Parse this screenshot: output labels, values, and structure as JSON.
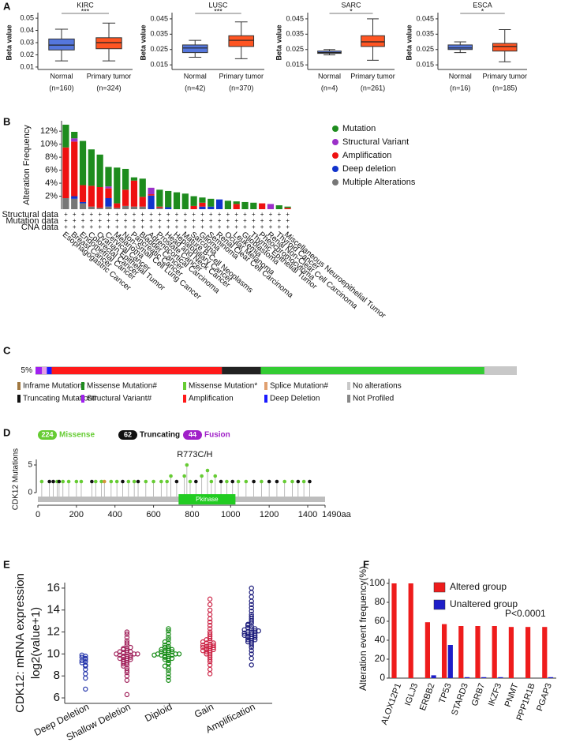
{
  "chart_data": [
    {
      "type": "box",
      "panel": "A",
      "title": "KIRC",
      "ylabel": "Beta value",
      "categories": [
        "Normal",
        "Primary tumor"
      ],
      "n_labels": [
        "(n=160)",
        "(n=324)"
      ],
      "colors": [
        "#5577dd",
        "#ff5522"
      ],
      "significance": "***",
      "boxes": [
        {
          "whisker_low": 0.015,
          "q1": 0.024,
          "median": 0.028,
          "q3": 0.033,
          "whisker_high": 0.041
        },
        {
          "whisker_low": 0.015,
          "q1": 0.025,
          "median": 0.03,
          "q3": 0.034,
          "whisker_high": 0.046
        }
      ],
      "ylim": [
        0.008,
        0.052
      ],
      "yticks": [
        0.01,
        0.02,
        0.03,
        0.04,
        0.05
      ]
    },
    {
      "type": "box",
      "title": "LUSC",
      "ylabel": "Beta value",
      "categories": [
        "Normal",
        "Primary tumor"
      ],
      "n_labels": [
        "(n=42)",
        "(n=370)"
      ],
      "colors": [
        "#5577dd",
        "#ff5522"
      ],
      "significance": "***",
      "boxes": [
        {
          "whisker_low": 0.02,
          "q1": 0.023,
          "median": 0.026,
          "q3": 0.028,
          "whisker_high": 0.031
        },
        {
          "whisker_low": 0.019,
          "q1": 0.027,
          "median": 0.031,
          "q3": 0.034,
          "whisker_high": 0.043
        }
      ],
      "ylim": [
        0.012,
        0.047
      ],
      "yticks": [
        0.015,
        0.025,
        0.035,
        0.045
      ]
    },
    {
      "type": "box",
      "title": "SARC",
      "ylabel": "Beta value",
      "categories": [
        "Normal",
        "Primary tumor"
      ],
      "n_labels": [
        "(n=4)",
        "(n=261)"
      ],
      "colors": [
        "#5577dd",
        "#ff5522"
      ],
      "significance": "*",
      "boxes": [
        {
          "whisker_low": 0.0215,
          "q1": 0.0225,
          "median": 0.023,
          "q3": 0.024,
          "whisker_high": 0.025
        },
        {
          "whisker_low": 0.018,
          "q1": 0.027,
          "median": 0.03,
          "q3": 0.034,
          "whisker_high": 0.045
        }
      ],
      "ylim": [
        0.012,
        0.047
      ],
      "yticks": [
        0.015,
        0.025,
        0.035,
        0.045
      ]
    },
    {
      "type": "box",
      "title": "ESCA",
      "ylabel": "Beta value",
      "categories": [
        "Normal",
        "Primary tumor"
      ],
      "n_labels": [
        "(n=16)",
        "(n=185)"
      ],
      "colors": [
        "#5577dd",
        "#ff5522"
      ],
      "significance": "*",
      "boxes": [
        {
          "whisker_low": 0.023,
          "q1": 0.025,
          "median": 0.026,
          "q3": 0.028,
          "whisker_high": 0.03
        },
        {
          "whisker_low": 0.017,
          "q1": 0.024,
          "median": 0.027,
          "q3": 0.029,
          "whisker_high": 0.038
        }
      ],
      "ylim": [
        0.012,
        0.047
      ],
      "yticks": [
        0.015,
        0.025,
        0.035,
        0.045
      ]
    },
    {
      "type": "bar",
      "panel": "B",
      "stacked": true,
      "legend": "right",
      "ylabel": "Alteration Frequency",
      "categories": [
        "Esophagogastric Cancer",
        "Breast Cancer",
        "Endometrial Cancer",
        "Colorectal Cancer",
        "Ovarian Epithelial Tumor",
        "Cervical Cancer",
        "Melanoma",
        "Non-Small Cell Lung Cancer",
        "Pancreatic Cancer",
        "Bladder Cancer",
        "Adrenocortical Carcinoma",
        "Prostate Cancer",
        "Head and Neck Cancer",
        "Hepatobiliary Cancer",
        "Mature B-Cell Neoplasms",
        "Sarcoma",
        "Glioma",
        "Seminoma",
        "Renal Clear Cell Carcinoma",
        "Ocular Melanoma",
        "Leukemia",
        "Glioblastoma",
        "Thymic Epithelial Tumor",
        "Pheochromocytoma",
        "Renal Non-Clear Cell Carcinoma",
        "Thyroid Cancer",
        "Miscellaneous Neuroepithelial Tumor"
      ],
      "series": [
        {
          "name": "Mutation",
          "color": "#1e8c1e",
          "values": [
            3.5,
            1.0,
            6.8,
            5.6,
            5.0,
            3.0,
            5.5,
            3.2,
            0.5,
            2.8,
            0,
            2.6,
            2.5,
            2.6,
            2.4,
            1.5,
            0.8,
            1.2,
            0,
            1.3,
            0.4,
            1.1,
            1.0,
            0,
            0,
            0.6,
            0.2
          ]
        },
        {
          "name": "Structural Variant",
          "color": "#9b30c8",
          "values": [
            0,
            0.5,
            0,
            0,
            0,
            0.3,
            0,
            0,
            0,
            0,
            1.0,
            0,
            0,
            0,
            0,
            0,
            0,
            0,
            0,
            0,
            0,
            0,
            0,
            0,
            0.8,
            0,
            0
          ]
        },
        {
          "name": "Amplification",
          "color": "#ee1111",
          "values": [
            7.8,
            8.4,
            2.6,
            3.2,
            3.2,
            1.5,
            0.7,
            2.5,
            4.0,
            1.5,
            0.2,
            0.2,
            0,
            0,
            0,
            0.5,
            0.6,
            0,
            0,
            0,
            0.8,
            0,
            0,
            0.9,
            0,
            0,
            0.2
          ]
        },
        {
          "name": "Deep deletion",
          "color": "#1133cc",
          "values": [
            0,
            0.4,
            0.2,
            0,
            0,
            1.3,
            0,
            0,
            0,
            0,
            2.1,
            0,
            0.3,
            0,
            0,
            0,
            0.4,
            0.4,
            1.5,
            0,
            0,
            0,
            0,
            0,
            0,
            0,
            0
          ]
        },
        {
          "name": "Multiple Alterations",
          "color": "#777777",
          "values": [
            1.7,
            1.6,
            0.9,
            0.4,
            0.2,
            0.4,
            0.2,
            0.5,
            0.4,
            0.4,
            0,
            0.2,
            0,
            0,
            0,
            0,
            0,
            0,
            0,
            0,
            0,
            0,
            0,
            0,
            0,
            0,
            0
          ]
        }
      ],
      "profile_rows": [
        "Structural data",
        "Mutation data",
        "CNA data"
      ],
      "profile_marker": "+",
      "ylim": [
        0,
        13.6
      ],
      "yticks": [
        {
          "value": 2,
          "label": "2%"
        },
        {
          "value": 4,
          "label": "4%"
        },
        {
          "value": 6,
          "label": "6%"
        },
        {
          "value": 8,
          "label": "8%"
        },
        {
          "value": 10,
          "label": "10%"
        },
        {
          "value": 12,
          "label": "12%"
        }
      ]
    },
    {
      "type": "oncoprint",
      "panel": "C",
      "frequency_label": "5%",
      "background": "#c8c8c8",
      "segments": [
        {
          "color": "#a020f0",
          "count": 8
        },
        {
          "color": "#e6a0e6",
          "count": 6
        },
        {
          "color": "#1a1aff",
          "count": 6
        },
        {
          "color": "#ff1a1a",
          "count": 210
        },
        {
          "color": "#222222",
          "count": 48
        },
        {
          "color": "#33cc33",
          "count": 276
        },
        {
          "color": "#c8c8c8",
          "count": 40
        }
      ],
      "legend_items": [
        {
          "label": "Inframe Mutation*",
          "color": "#a07840"
        },
        {
          "label": "Missense Mutation#",
          "color": "#1e8c1e"
        },
        {
          "label": "Missense Mutation*",
          "color": "#66cc33"
        },
        {
          "label": "Splice Mutation#",
          "color": "#e0a070"
        },
        {
          "label": "No alterations",
          "color": "#c8c8c8"
        },
        {
          "label": "Truncating Mutation#",
          "color": "#111111"
        },
        {
          "label": "Structural Variant#",
          "color": "#a020f0"
        },
        {
          "label": "Amplification",
          "color": "#ff1a1a"
        },
        {
          "label": "Deep Deletion",
          "color": "#1a1aff"
        },
        {
          "label": "Not Profiled",
          "color": "#888888"
        }
      ]
    },
    {
      "type": "lollipop",
      "panel": "D",
      "ylabel": "CDK12 Mutations",
      "annotation": "R773C/H",
      "counts": [
        {
          "count": 224,
          "label": "Missense",
          "color": "#66cc33"
        },
        {
          "count": 62,
          "label": "Truncating",
          "color": "#111111"
        },
        {
          "count": 44,
          "label": "Fusion",
          "color": "#a020c8"
        }
      ],
      "domain": {
        "name": "Pkinase",
        "start": 730,
        "end": 1025,
        "color": "#22cc22"
      },
      "mutations": [
        {
          "position": 20,
          "count": 2,
          "color": "#66cc33"
        },
        {
          "position": 60,
          "count": 2,
          "color": "#111111"
        },
        {
          "position": 80,
          "count": 2,
          "color": "#111111"
        },
        {
          "position": 100,
          "count": 2,
          "color": "#66cc33"
        },
        {
          "position": 110,
          "count": 2,
          "color": "#111111"
        },
        {
          "position": 130,
          "count": 2,
          "color": "#66cc33"
        },
        {
          "position": 160,
          "count": 2,
          "color": "#66cc33"
        },
        {
          "position": 200,
          "count": 2,
          "color": "#66cc33"
        },
        {
          "position": 225,
          "count": 2,
          "color": "#66cc33"
        },
        {
          "position": 280,
          "count": 2,
          "color": "#111111"
        },
        {
          "position": 300,
          "count": 2,
          "color": "#66cc33"
        },
        {
          "position": 330,
          "count": 2,
          "color": "#66cc33"
        },
        {
          "position": 345,
          "count": 2,
          "color": "#d4943a"
        },
        {
          "position": 380,
          "count": 2,
          "color": "#66cc33"
        },
        {
          "position": 410,
          "count": 2,
          "color": "#66cc33"
        },
        {
          "position": 440,
          "count": 2,
          "color": "#111111"
        },
        {
          "position": 470,
          "count": 2,
          "color": "#66cc33"
        },
        {
          "position": 500,
          "count": 2,
          "color": "#66cc33"
        },
        {
          "position": 520,
          "count": 2,
          "color": "#111111"
        },
        {
          "position": 560,
          "count": 2,
          "color": "#66cc33"
        },
        {
          "position": 600,
          "count": 2,
          "color": "#66cc33"
        },
        {
          "position": 640,
          "count": 2,
          "color": "#66cc33"
        },
        {
          "position": 670,
          "count": 2,
          "color": "#66cc33"
        },
        {
          "position": 690,
          "count": 3,
          "color": "#66cc33"
        },
        {
          "position": 720,
          "count": 2,
          "color": "#111111"
        },
        {
          "position": 760,
          "count": 3,
          "color": "#66cc33"
        },
        {
          "position": 773,
          "count": 5,
          "color": "#66cc33"
        },
        {
          "position": 790,
          "count": 2,
          "color": "#66cc33"
        },
        {
          "position": 820,
          "count": 2,
          "color": "#111111"
        },
        {
          "position": 850,
          "count": 3,
          "color": "#66cc33"
        },
        {
          "position": 880,
          "count": 4,
          "color": "#66cc33"
        },
        {
          "position": 900,
          "count": 2,
          "color": "#66cc33"
        },
        {
          "position": 920,
          "count": 3,
          "color": "#66cc33"
        },
        {
          "position": 950,
          "count": 2,
          "color": "#111111"
        },
        {
          "position": 980,
          "count": 2,
          "color": "#66cc33"
        },
        {
          "position": 1010,
          "count": 2,
          "color": "#111111"
        },
        {
          "position": 1040,
          "count": 2,
          "color": "#66cc33"
        },
        {
          "position": 1080,
          "count": 2,
          "color": "#66cc33"
        },
        {
          "position": 1120,
          "count": 2,
          "color": "#111111"
        },
        {
          "position": 1160,
          "count": 2,
          "color": "#66cc33"
        },
        {
          "position": 1200,
          "count": 2,
          "color": "#111111"
        },
        {
          "position": 1240,
          "count": 2,
          "color": "#111111"
        },
        {
          "position": 1280,
          "count": 2,
          "color": "#66cc33"
        },
        {
          "position": 1320,
          "count": 2,
          "color": "#66cc33"
        },
        {
          "position": 1350,
          "count": 2,
          "color": "#111111"
        },
        {
          "position": 1380,
          "count": 2,
          "color": "#66cc33"
        },
        {
          "position": 1410,
          "count": 2,
          "color": "#111111"
        }
      ],
      "xlim": [
        0,
        1490
      ],
      "xticks": [
        0,
        200,
        400,
        600,
        800,
        1000,
        1200,
        1400,
        {
          "value": 1490,
          "label": "1490aa"
        }
      ],
      "ylim": [
        0,
        6
      ],
      "yticks": [
        0,
        5
      ]
    },
    {
      "type": "swarm",
      "panel": "E",
      "ylabel": [
        "CDK12: mRNA expression",
        "log2(value+1)"
      ],
      "series": [
        {
          "name": "Deep Deletion",
          "color": "#2233aa",
          "values": [
            9.8,
            9.6,
            9.5,
            9.4,
            9.3,
            9.7,
            9.9,
            9.2,
            8.9,
            8.6,
            8.2,
            7.8,
            6.8,
            9.0
          ]
        },
        {
          "name": "Shallow Deletion",
          "color": "#a0205a",
          "values": [
            6.3,
            7.6,
            8.0,
            8.3,
            8.5,
            8.7,
            8.9,
            9.0,
            9.1,
            9.2,
            9.3,
            9.4,
            9.5,
            9.5,
            9.6,
            9.7,
            9.7,
            9.8,
            9.8,
            9.9,
            9.9,
            10.0,
            10.0,
            10.0,
            10.1,
            10.1,
            10.2,
            10.2,
            10.3,
            10.4,
            10.5,
            10.5,
            10.6,
            10.8,
            11.0,
            11.2,
            11.5,
            11.8,
            12.0,
            9.6
          ]
        },
        {
          "name": "Diploid",
          "color": "#138a13",
          "values": [
            7.6,
            7.9,
            8.2,
            8.5,
            8.7,
            8.9,
            9.1,
            9.2,
            9.4,
            9.5,
            9.6,
            9.7,
            9.8,
            9.8,
            9.9,
            9.9,
            10.0,
            10.0,
            10.0,
            10.1,
            10.1,
            10.2,
            10.2,
            10.3,
            10.3,
            10.4,
            10.5,
            10.6,
            10.7,
            10.8,
            11.0,
            11.1,
            11.3,
            11.5,
            11.8,
            12.1,
            12.3,
            9.6,
            10.4,
            9.9
          ]
        },
        {
          "name": "Gain",
          "color": "#cc2244",
          "values": [
            8.2,
            8.6,
            9.0,
            9.3,
            9.5,
            9.7,
            9.9,
            10.0,
            10.1,
            10.2,
            10.3,
            10.4,
            10.4,
            10.5,
            10.5,
            10.6,
            10.6,
            10.7,
            10.7,
            10.8,
            10.9,
            11.0,
            11.0,
            11.1,
            11.2,
            11.4,
            11.6,
            11.8,
            12.0,
            12.3,
            12.6,
            12.9,
            13.2,
            13.6,
            14.0,
            14.5,
            15.0,
            10.3,
            10.8,
            11.3
          ]
        },
        {
          "name": "Amplification",
          "color": "#1a1a7a",
          "values": [
            9.0,
            9.6,
            10.0,
            10.3,
            10.6,
            10.8,
            11.0,
            11.1,
            11.2,
            11.3,
            11.4,
            11.5,
            11.6,
            11.6,
            11.7,
            11.7,
            11.8,
            11.8,
            11.9,
            11.9,
            12.0,
            12.0,
            12.1,
            12.2,
            12.3,
            12.4,
            12.5,
            12.6,
            12.8,
            13.0,
            13.2,
            13.4,
            13.6,
            13.9,
            14.2,
            14.5,
            14.8,
            15.2,
            15.6,
            16.0,
            11.5,
            12.1,
            12.7,
            11.3,
            12.3
          ]
        }
      ],
      "ylim": [
        5.5,
        16.5
      ],
      "yticks": [
        6,
        8,
        10,
        12,
        14,
        16
      ]
    },
    {
      "type": "bar",
      "panel": "F",
      "legend": "upper right",
      "ylabel": "Alteration event frequency(%)",
      "annotation": "P<0.0001",
      "categories": [
        "ALOX12P1",
        "IGLJ3",
        "ERBB2",
        "TP53",
        "STARD3",
        "GRB7",
        "IKZF3",
        "PNMT",
        "PPP1R1B",
        "PGAP3"
      ],
      "series": [
        {
          "name": "Altered group",
          "color": "#ee1c1c",
          "values": [
            100,
            100,
            59,
            57,
            55,
            55,
            55,
            54,
            54,
            54
          ]
        },
        {
          "name": "Unaltered group",
          "color": "#1e1ec8",
          "values": [
            0,
            0,
            3,
            35,
            1,
            1,
            1,
            0,
            0,
            1
          ]
        }
      ],
      "ylim": [
        0,
        105
      ],
      "yticks": [
        0,
        20,
        40,
        60,
        80,
        100
      ]
    }
  ]
}
